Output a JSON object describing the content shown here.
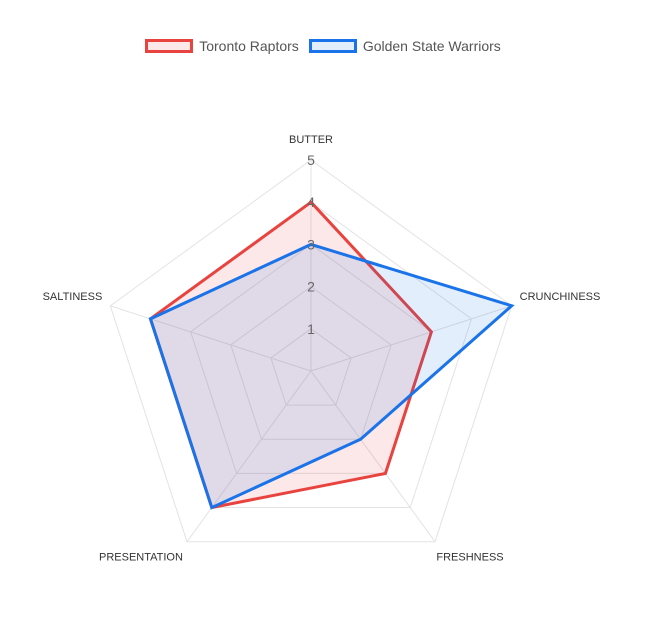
{
  "chart_data": {
    "type": "radar",
    "axes": [
      "BUTTER",
      "CRUNCHINESS",
      "FRESHNESS",
      "PRESENTATION",
      "SALTINESS"
    ],
    "r_range": [
      0,
      5
    ],
    "ticks": [
      "1",
      "2",
      "3",
      "4",
      "5"
    ],
    "grid": true,
    "legend_position": "top",
    "series": [
      {
        "name": "Toronto Raptors",
        "values": [
          4,
          3,
          3,
          4,
          4
        ],
        "color": "#e8433f",
        "fill": "rgba(232,67,63,0.12)"
      },
      {
        "name": "Golden State Warriors",
        "values": [
          3,
          5,
          2,
          4,
          4
        ],
        "color": "#1a73e8",
        "fill": "rgba(26,115,232,0.12)"
      }
    ]
  }
}
